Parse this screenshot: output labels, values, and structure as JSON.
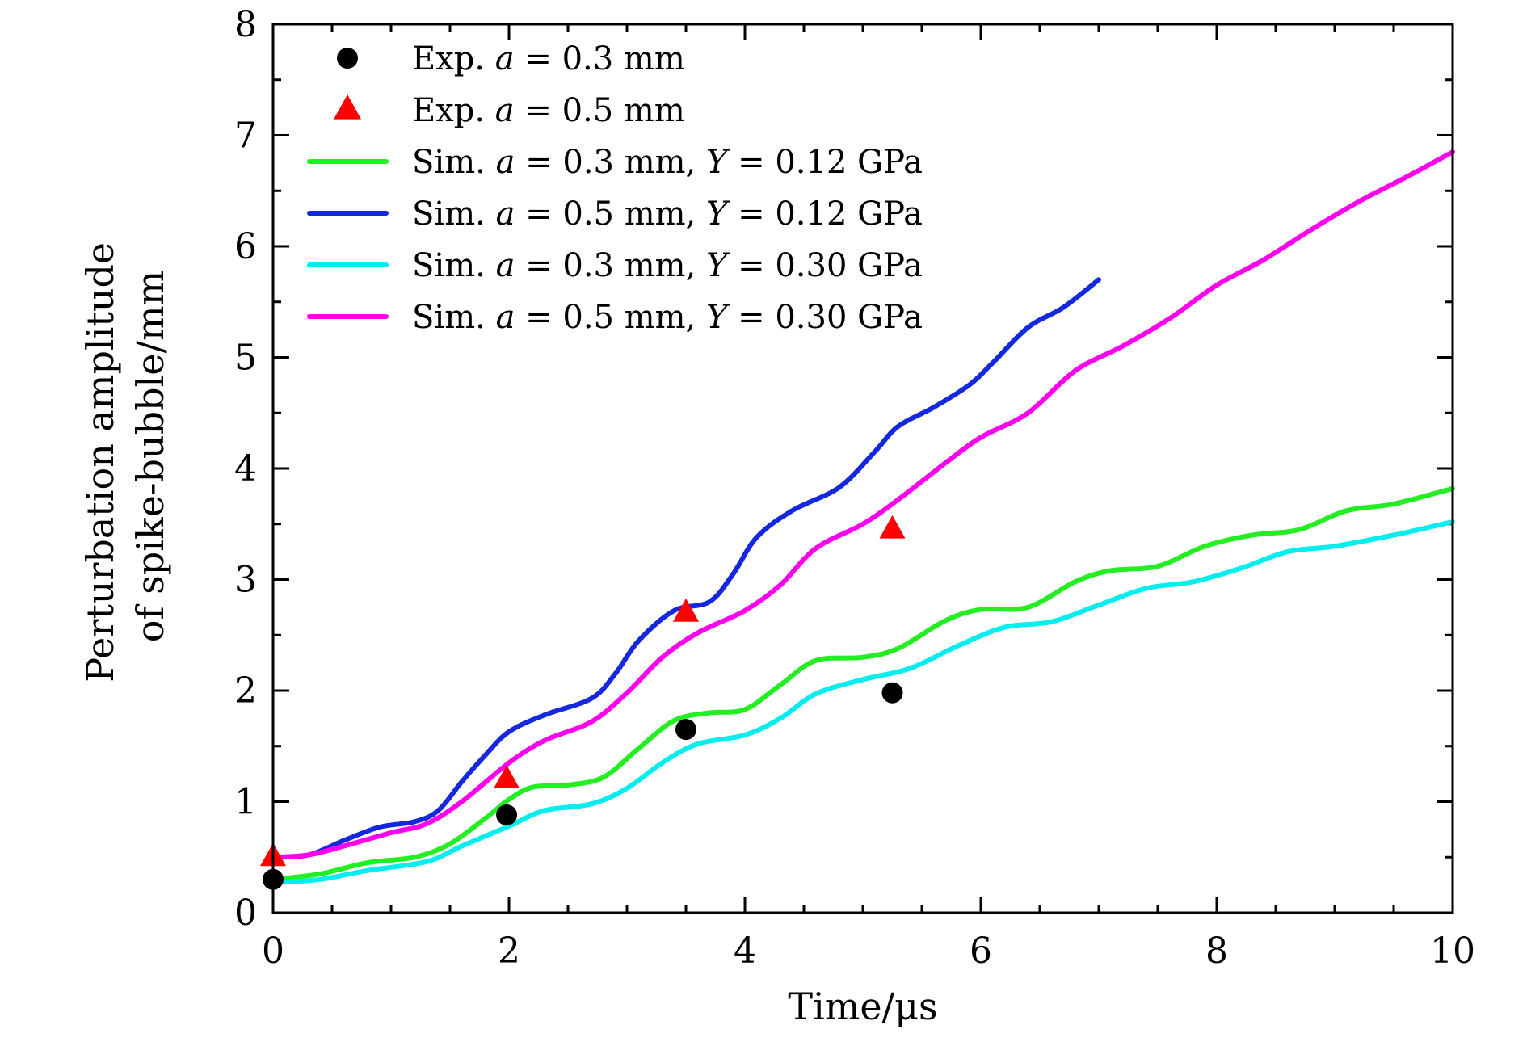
{
  "chart_data": {
    "type": "line",
    "xlabel": "Time/μs",
    "ylabel_lines": [
      "Perturbation amplitude",
      "of spike-bubble/mm"
    ],
    "xlim": [
      0,
      10
    ],
    "ylim": [
      0,
      8
    ],
    "xticks": [
      0,
      2,
      4,
      6,
      8,
      10
    ],
    "yticks": [
      0,
      1,
      2,
      3,
      4,
      5,
      6,
      7,
      8
    ],
    "x_minor_step": 0.5,
    "y_minor_step": 0.5,
    "grid": false,
    "legend_position": "top-left",
    "series": [
      {
        "name": "Exp. a = 0.3 mm",
        "legend_parts": [
          [
            "Exp. ",
            false
          ],
          [
            "a",
            true
          ],
          [
            " = 0.3 mm",
            false
          ]
        ],
        "kind": "scatter",
        "marker": "circle",
        "color": "#000000",
        "points": [
          [
            0,
            0.3
          ],
          [
            1.98,
            0.88
          ],
          [
            3.5,
            1.65
          ],
          [
            5.25,
            1.98
          ]
        ]
      },
      {
        "name": "Exp. a = 0.5 mm",
        "legend_parts": [
          [
            "Exp. ",
            false
          ],
          [
            "a",
            true
          ],
          [
            " = 0.5 mm",
            false
          ]
        ],
        "kind": "scatter",
        "marker": "triangle",
        "color": "#ff0000",
        "points": [
          [
            0,
            0.5
          ],
          [
            1.98,
            1.2
          ],
          [
            3.5,
            2.7
          ],
          [
            5.25,
            3.45
          ]
        ]
      },
      {
        "name": "Sim. a = 0.3 mm, Y = 0.12 GPa",
        "legend_parts": [
          [
            "Sim. ",
            false
          ],
          [
            "a",
            true
          ],
          [
            " = 0.3 mm, ",
            false
          ],
          [
            "Y",
            true
          ],
          [
            " = 0.12 GPa",
            false
          ]
        ],
        "kind": "line",
        "color": "#22ee22",
        "points": [
          [
            0,
            0.3
          ],
          [
            0.4,
            0.35
          ],
          [
            0.8,
            0.45
          ],
          [
            1.2,
            0.5
          ],
          [
            1.5,
            0.62
          ],
          [
            1.8,
            0.85
          ],
          [
            2.0,
            1.02
          ],
          [
            2.2,
            1.13
          ],
          [
            2.5,
            1.15
          ],
          [
            2.8,
            1.22
          ],
          [
            3.1,
            1.48
          ],
          [
            3.4,
            1.73
          ],
          [
            3.7,
            1.8
          ],
          [
            4.0,
            1.83
          ],
          [
            4.3,
            2.05
          ],
          [
            4.6,
            2.27
          ],
          [
            5.0,
            2.3
          ],
          [
            5.3,
            2.38
          ],
          [
            5.7,
            2.63
          ],
          [
            6.0,
            2.73
          ],
          [
            6.4,
            2.75
          ],
          [
            6.8,
            2.98
          ],
          [
            7.1,
            3.08
          ],
          [
            7.5,
            3.12
          ],
          [
            7.9,
            3.3
          ],
          [
            8.3,
            3.4
          ],
          [
            8.7,
            3.45
          ],
          [
            9.1,
            3.62
          ],
          [
            9.5,
            3.68
          ],
          [
            10.0,
            3.82
          ]
        ]
      },
      {
        "name": "Sim. a = 0.5 mm, Y = 0.12 GPa",
        "legend_parts": [
          [
            "Sim. ",
            false
          ],
          [
            "a",
            true
          ],
          [
            " = 0.5 mm, ",
            false
          ],
          [
            "Y",
            true
          ],
          [
            " = 0.12 GPa",
            false
          ]
        ],
        "kind": "line",
        "color": "#1428e0",
        "points": [
          [
            0,
            0.5
          ],
          [
            0.3,
            0.52
          ],
          [
            0.6,
            0.65
          ],
          [
            0.9,
            0.77
          ],
          [
            1.2,
            0.82
          ],
          [
            1.4,
            0.92
          ],
          [
            1.6,
            1.18
          ],
          [
            1.8,
            1.42
          ],
          [
            2.0,
            1.63
          ],
          [
            2.3,
            1.78
          ],
          [
            2.7,
            1.93
          ],
          [
            2.9,
            2.15
          ],
          [
            3.1,
            2.45
          ],
          [
            3.4,
            2.72
          ],
          [
            3.7,
            2.8
          ],
          [
            3.9,
            3.05
          ],
          [
            4.1,
            3.38
          ],
          [
            4.4,
            3.62
          ],
          [
            4.8,
            3.83
          ],
          [
            5.1,
            4.15
          ],
          [
            5.3,
            4.38
          ],
          [
            5.6,
            4.55
          ],
          [
            5.9,
            4.75
          ],
          [
            6.1,
            4.95
          ],
          [
            6.4,
            5.27
          ],
          [
            6.7,
            5.45
          ],
          [
            7.0,
            5.7
          ]
        ]
      },
      {
        "name": "Sim. a = 0.3 mm, Y = 0.30 GPa",
        "legend_parts": [
          [
            "Sim. ",
            false
          ],
          [
            "a",
            true
          ],
          [
            " = 0.3 mm, ",
            false
          ],
          [
            "Y",
            true
          ],
          [
            " = 0.30 GPa",
            false
          ]
        ],
        "kind": "line",
        "color": "#00eeee",
        "points": [
          [
            0,
            0.27
          ],
          [
            0.4,
            0.3
          ],
          [
            0.8,
            0.38
          ],
          [
            1.3,
            0.46
          ],
          [
            1.6,
            0.6
          ],
          [
            2.0,
            0.78
          ],
          [
            2.3,
            0.92
          ],
          [
            2.7,
            0.98
          ],
          [
            3.0,
            1.12
          ],
          [
            3.3,
            1.35
          ],
          [
            3.6,
            1.52
          ],
          [
            4.0,
            1.6
          ],
          [
            4.3,
            1.75
          ],
          [
            4.6,
            1.97
          ],
          [
            5.0,
            2.1
          ],
          [
            5.4,
            2.2
          ],
          [
            5.8,
            2.4
          ],
          [
            6.2,
            2.57
          ],
          [
            6.6,
            2.62
          ],
          [
            7.0,
            2.77
          ],
          [
            7.4,
            2.92
          ],
          [
            7.8,
            2.98
          ],
          [
            8.2,
            3.1
          ],
          [
            8.6,
            3.25
          ],
          [
            9.0,
            3.3
          ],
          [
            9.5,
            3.4
          ],
          [
            10.0,
            3.52
          ]
        ]
      },
      {
        "name": "Sim. a = 0.5 mm, Y = 0.30 GPa",
        "legend_parts": [
          [
            "Sim. ",
            false
          ],
          [
            "a",
            true
          ],
          [
            " = 0.5 mm, ",
            false
          ],
          [
            "Y",
            true
          ],
          [
            " = 0.30 GPa",
            false
          ]
        ],
        "kind": "line",
        "color": "#ff00ee",
        "points": [
          [
            0,
            0.5
          ],
          [
            0.3,
            0.52
          ],
          [
            0.6,
            0.6
          ],
          [
            1.0,
            0.72
          ],
          [
            1.3,
            0.8
          ],
          [
            1.6,
            1.0
          ],
          [
            2.0,
            1.35
          ],
          [
            2.3,
            1.55
          ],
          [
            2.7,
            1.72
          ],
          [
            3.0,
            1.98
          ],
          [
            3.3,
            2.3
          ],
          [
            3.6,
            2.52
          ],
          [
            4.0,
            2.72
          ],
          [
            4.3,
            2.95
          ],
          [
            4.6,
            3.28
          ],
          [
            5.0,
            3.5
          ],
          [
            5.3,
            3.72
          ],
          [
            5.7,
            4.05
          ],
          [
            6.0,
            4.28
          ],
          [
            6.4,
            4.5
          ],
          [
            6.8,
            4.88
          ],
          [
            7.2,
            5.1
          ],
          [
            7.6,
            5.35
          ],
          [
            8.0,
            5.65
          ],
          [
            8.4,
            5.88
          ],
          [
            8.8,
            6.15
          ],
          [
            9.2,
            6.4
          ],
          [
            9.6,
            6.62
          ],
          [
            10.0,
            6.85
          ]
        ]
      }
    ]
  }
}
